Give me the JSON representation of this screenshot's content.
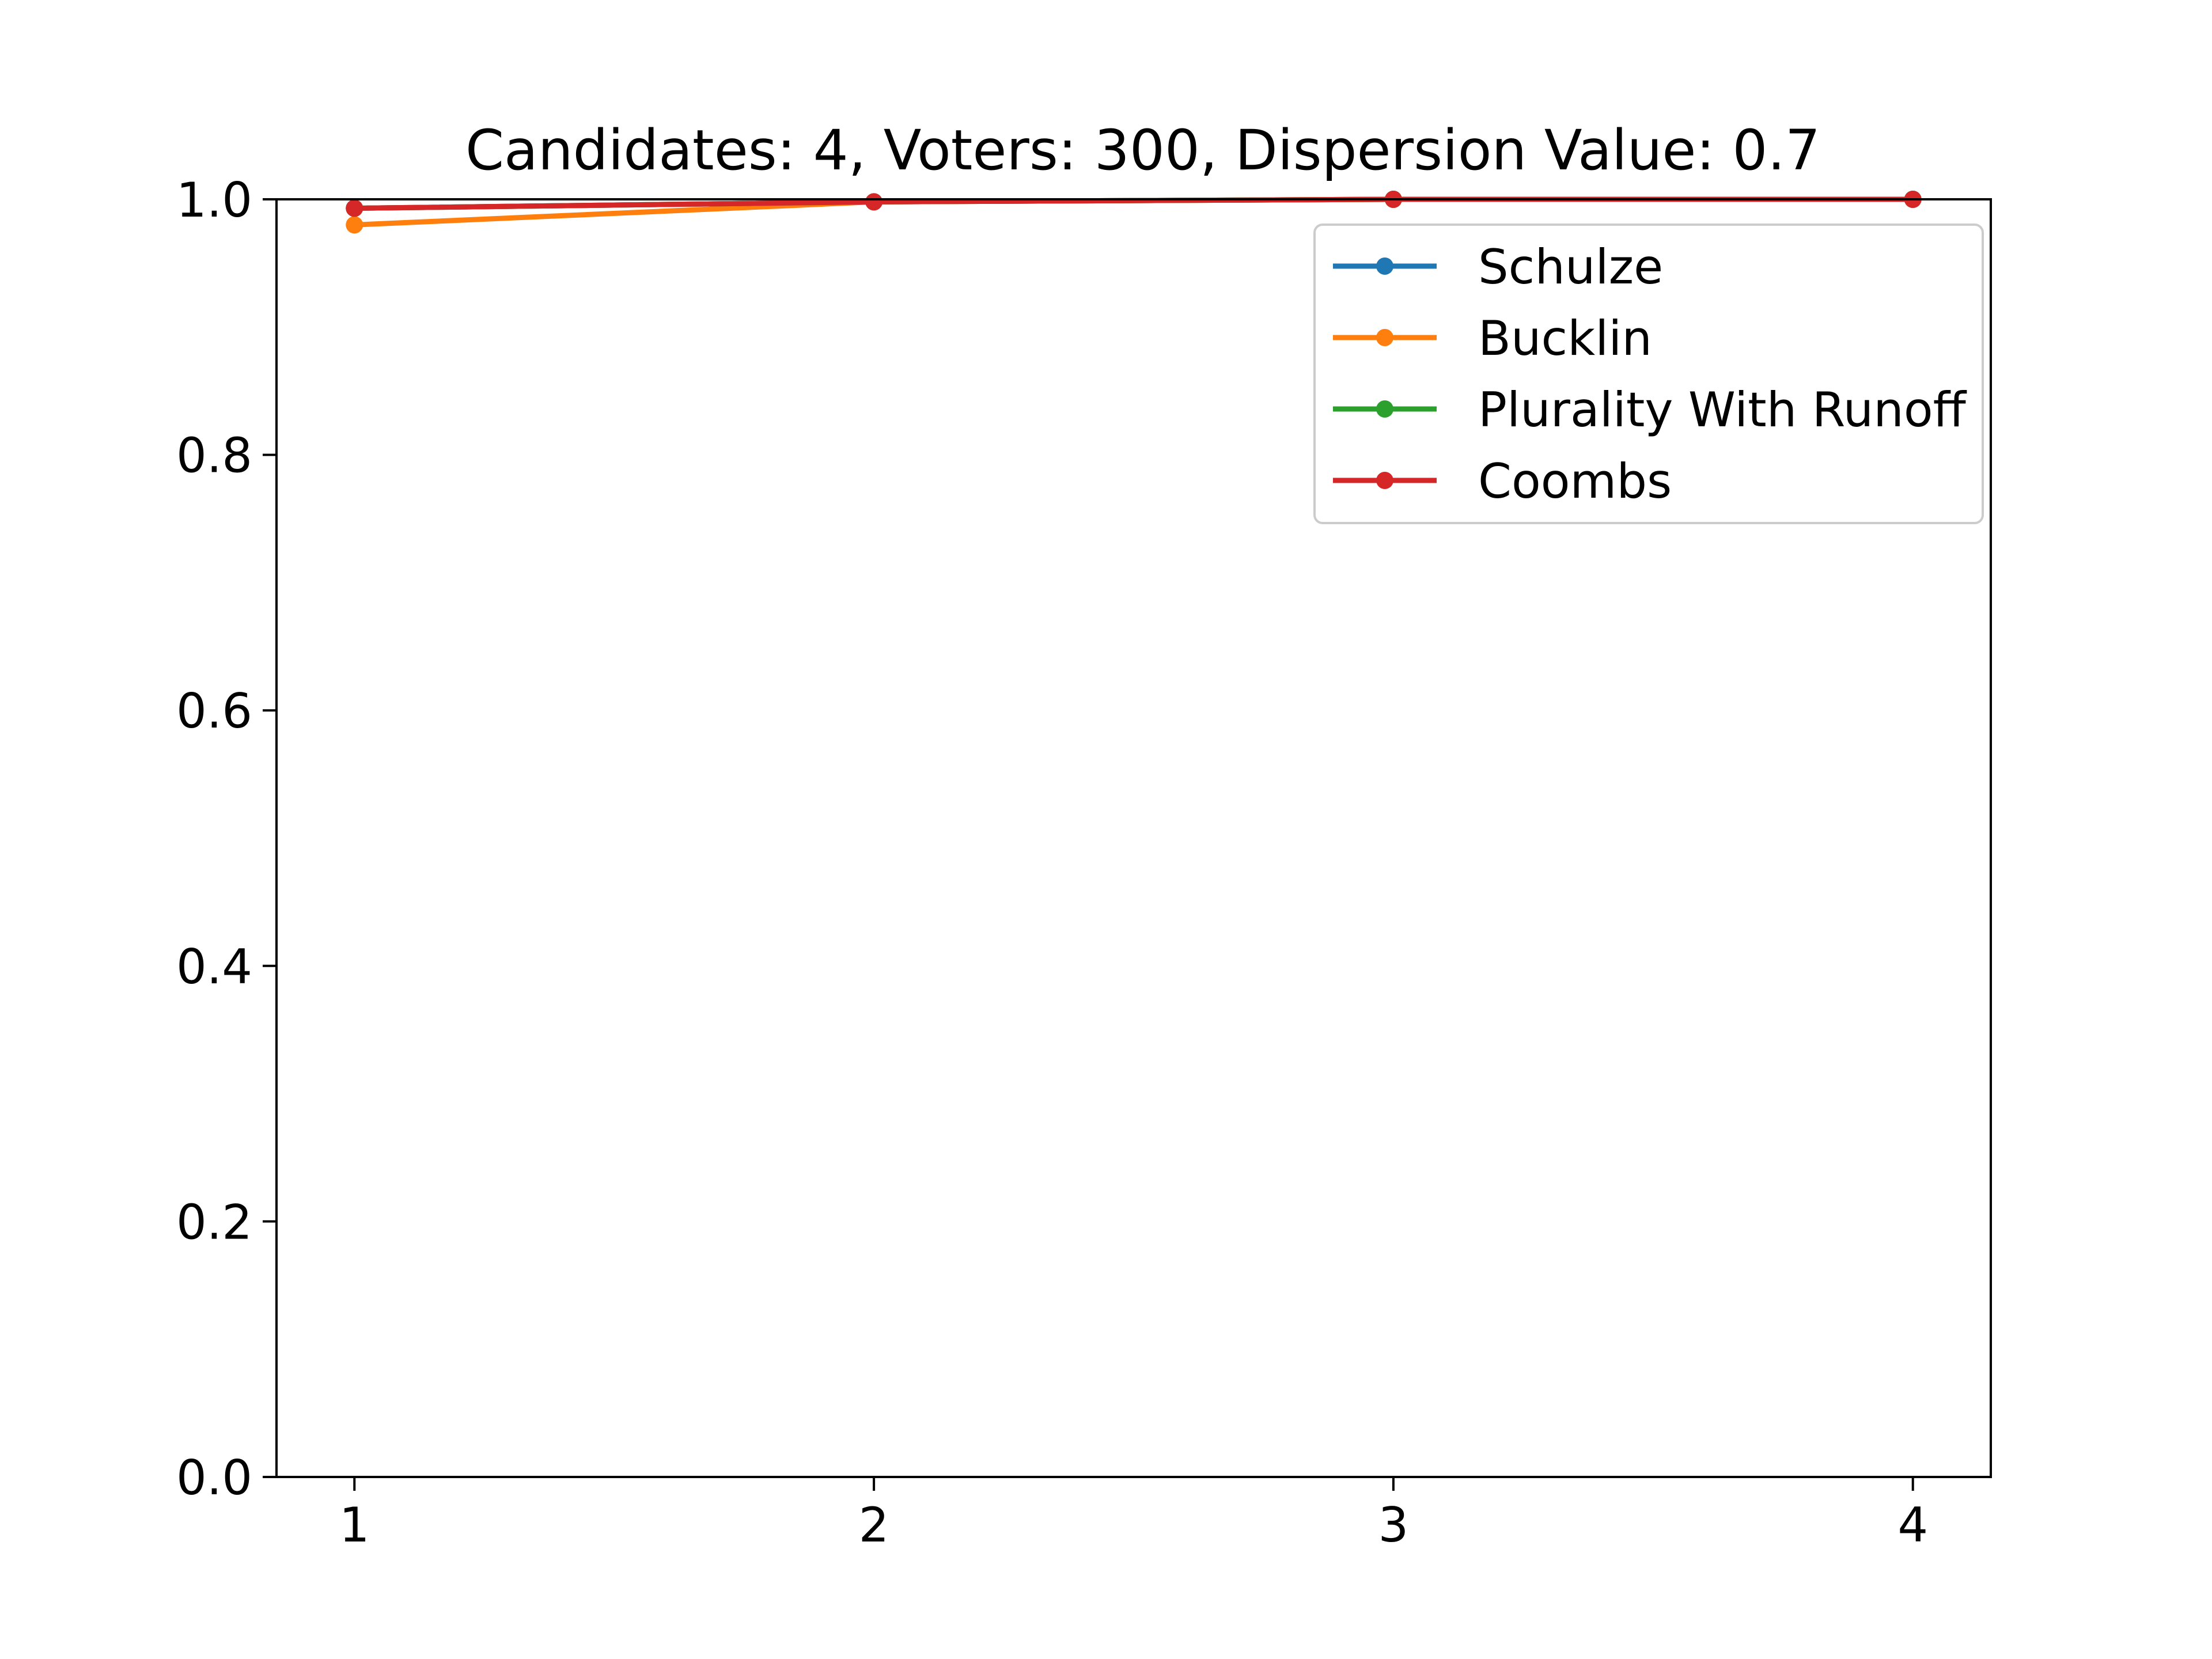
{
  "chart_data": {
    "type": "line",
    "title": "Candidates: 4, Voters: 300, Dispersion Value: 0.7",
    "xlabel": "",
    "ylabel": "",
    "x": [
      1,
      2,
      3,
      4
    ],
    "x_ticks": [
      "1",
      "2",
      "3",
      "4"
    ],
    "ylim": [
      0,
      1
    ],
    "y_ticks": [
      "0.0",
      "0.2",
      "0.4",
      "0.6",
      "0.8",
      "1.0"
    ],
    "grid": false,
    "legend_position": "top-right",
    "series": [
      {
        "name": "Schulze",
        "color": "#1f77b4",
        "values": [
          0.993,
          0.998,
          1.0,
          1.0
        ]
      },
      {
        "name": "Bucklin",
        "color": "#ff7f0e",
        "values": [
          0.98,
          0.998,
          1.0,
          1.0
        ]
      },
      {
        "name": "Plurality With Runoff",
        "color": "#2ca02c",
        "values": [
          0.993,
          0.998,
          1.0,
          1.0
        ]
      },
      {
        "name": "Coombs",
        "color": "#d62728",
        "values": [
          0.993,
          0.998,
          1.0,
          1.0
        ]
      }
    ]
  }
}
